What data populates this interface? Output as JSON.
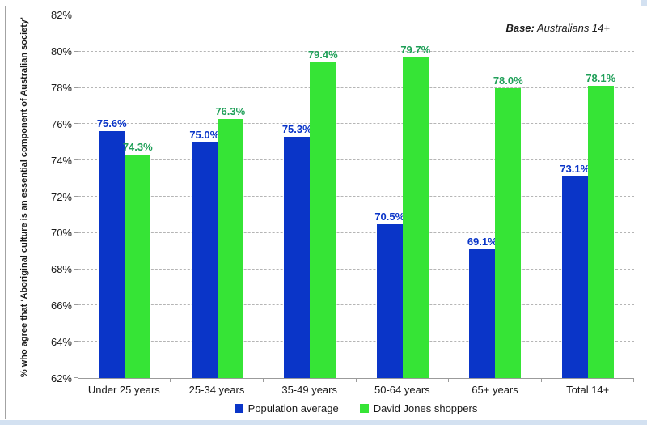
{
  "slide": {
    "background_strip_color": "#d3e1f1"
  },
  "chart_data": {
    "type": "bar",
    "title": "",
    "categories": [
      "Under 25 years",
      "25-34 years",
      "35-49 years",
      "50-64 years",
      "65+ years",
      "Total 14+"
    ],
    "series": [
      {
        "name": "Population average",
        "color": "#0a35c8",
        "label_color": "#0a35c8",
        "values": [
          75.6,
          75.0,
          75.3,
          70.5,
          69.1,
          73.1
        ]
      },
      {
        "name": "David Jones shoppers",
        "color": "#36e436",
        "label_color": "#1f9f58",
        "values": [
          74.3,
          76.3,
          79.4,
          79.7,
          78.0,
          78.1
        ]
      }
    ],
    "value_label_suffix": "%",
    "ylabel": "% who agree that ‘Aboriginal culture is an essential component of Australian society’",
    "xlabel": "",
    "ylim": [
      62,
      82
    ],
    "ytick_step": 2,
    "ytick_suffix": "%",
    "grid": "horizontal-dashed",
    "legend_position": "bottom",
    "annotation": {
      "prefix": "Base:",
      "text": "Australians 14+"
    }
  }
}
